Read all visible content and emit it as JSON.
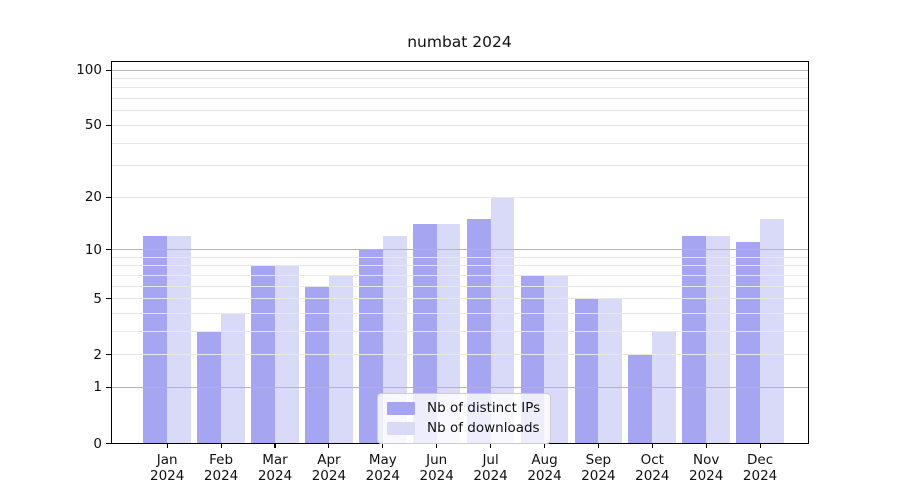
{
  "chart_data": {
    "type": "bar",
    "title": "numbat 2024",
    "year_label": "2024",
    "categories": [
      "Jan",
      "Feb",
      "Mar",
      "Apr",
      "May",
      "Jun",
      "Jul",
      "Aug",
      "Sep",
      "Oct",
      "Nov",
      "Dec"
    ],
    "series": [
      {
        "name": "Nb of distinct IPs",
        "color": "#a5a5f1",
        "values": [
          12,
          3,
          8,
          6,
          10,
          14,
          15,
          7,
          5,
          2,
          12,
          11
        ]
      },
      {
        "name": "Nb of downloads",
        "color": "#d9d9f8",
        "values": [
          12,
          4,
          8,
          7,
          12,
          14,
          20,
          7,
          5,
          3,
          12,
          15
        ]
      }
    ],
    "yscale": "log1p",
    "ylim": [
      0,
      114
    ],
    "y_tick_values": [
      0,
      1,
      2,
      5,
      10,
      20,
      50,
      100
    ],
    "y_major_gridlines": [
      1,
      10,
      100
    ],
    "y_minor_gridlines": [
      2,
      3,
      4,
      5,
      6,
      7,
      8,
      9,
      20,
      30,
      40,
      50,
      60,
      70,
      80,
      90
    ],
    "grid": true,
    "legend": {
      "position": "lower center",
      "labels": [
        "Nb of distinct IPs",
        "Nb of downloads"
      ]
    },
    "colors": {
      "major_grid": "#b5b5b5",
      "minor_grid": "#e7e7e7",
      "frame": "#000000",
      "text": "#111111"
    }
  }
}
